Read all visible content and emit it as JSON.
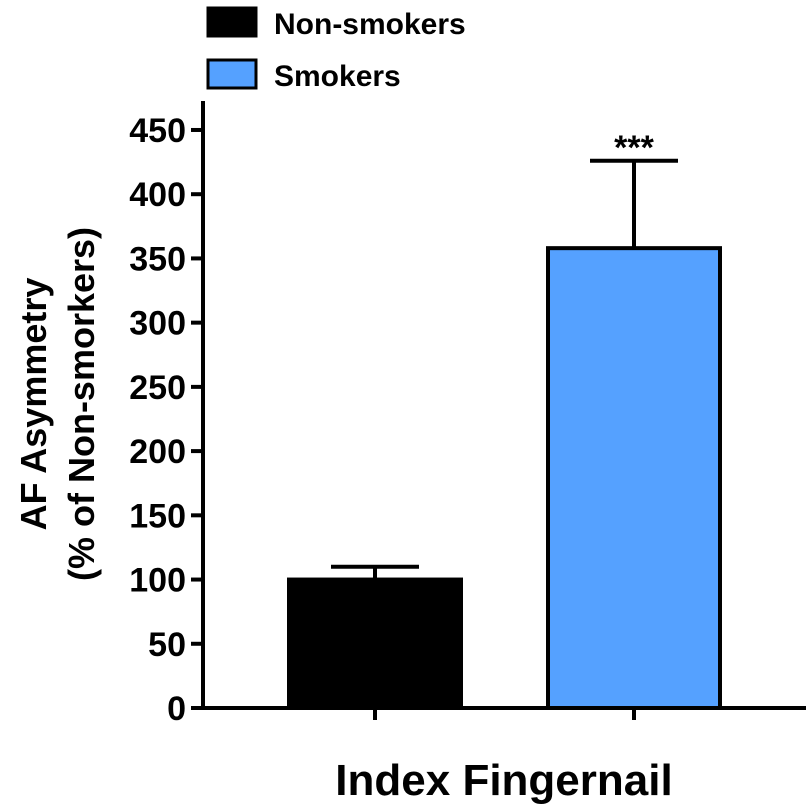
{
  "chart_data": {
    "type": "bar",
    "title": "",
    "xlabel": "Index Fingernail",
    "ylabel_lines": [
      "AF Asymmetry",
      "(% of Non-smorkers)"
    ],
    "ylim": [
      0,
      475
    ],
    "yticks": [
      0,
      50,
      100,
      150,
      200,
      250,
      300,
      350,
      400,
      450
    ],
    "legend_position": "top-left",
    "grid": false,
    "series": [
      {
        "name": "Non-smokers",
        "value": 100,
        "error": 10,
        "color": "#000000",
        "annotation": ""
      },
      {
        "name": "Smokers",
        "value": 358,
        "error": 68,
        "color": "#55a1ff",
        "annotation": "***"
      }
    ]
  }
}
